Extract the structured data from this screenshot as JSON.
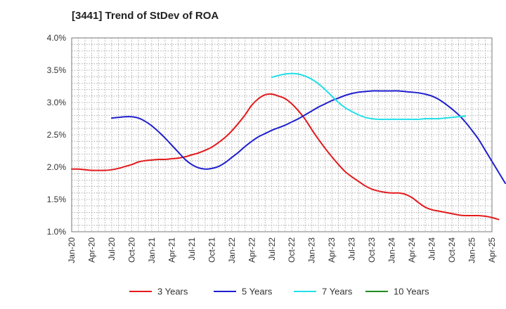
{
  "chart_data": {
    "type": "line",
    "title": "[3441]  Trend of StDev of ROA",
    "xlabel": "",
    "ylabel": "",
    "grid": true,
    "legend_position": "bottom",
    "ylim": [
      1.0,
      4.0
    ],
    "yticks": [
      "1.0%",
      "1.5%",
      "2.0%",
      "2.5%",
      "3.0%",
      "3.5%",
      "4.0%"
    ],
    "xticks": [
      "Jan-20",
      "Apr-20",
      "Jul-20",
      "Oct-20",
      "Jan-21",
      "Apr-21",
      "Jul-21",
      "Oct-21",
      "Jan-22",
      "Apr-22",
      "Jul-22",
      "Oct-22",
      "Jan-23",
      "Apr-23",
      "Jul-23",
      "Oct-23",
      "Jan-24",
      "Apr-24",
      "Jul-24",
      "Oct-24",
      "Jan-25",
      "Apr-25"
    ],
    "x_start": "Jan-20",
    "series": [
      {
        "name": "3 Years",
        "color": "#e31a1c",
        "start_month_index": 0,
        "values": [
          1.97,
          1.97,
          1.96,
          1.95,
          1.95,
          1.95,
          1.96,
          1.98,
          2.01,
          2.04,
          2.08,
          2.1,
          2.11,
          2.12,
          2.12,
          2.13,
          2.14,
          2.16,
          2.19,
          2.22,
          2.26,
          2.31,
          2.38,
          2.46,
          2.56,
          2.68,
          2.81,
          2.96,
          3.06,
          3.12,
          3.13,
          3.1,
          3.06,
          2.98,
          2.87,
          2.74,
          2.58,
          2.43,
          2.29,
          2.16,
          2.04,
          1.93,
          1.85,
          1.78,
          1.71,
          1.66,
          1.63,
          1.61,
          1.6,
          1.6,
          1.58,
          1.53,
          1.45,
          1.38,
          1.34,
          1.32,
          1.3,
          1.28,
          1.26,
          1.25,
          1.25,
          1.25,
          1.24,
          1.22,
          1.19
        ]
      },
      {
        "name": "5 Years",
        "color": "#1f1fcf",
        "start_month_index": 6,
        "values": [
          2.76,
          2.77,
          2.78,
          2.78,
          2.76,
          2.71,
          2.64,
          2.55,
          2.45,
          2.34,
          2.23,
          2.12,
          2.04,
          1.99,
          1.97,
          1.98,
          2.01,
          2.07,
          2.15,
          2.23,
          2.32,
          2.4,
          2.47,
          2.52,
          2.57,
          2.61,
          2.65,
          2.7,
          2.75,
          2.81,
          2.87,
          2.93,
          2.98,
          3.03,
          3.07,
          3.11,
          3.14,
          3.16,
          3.17,
          3.18,
          3.18,
          3.18,
          3.18,
          3.18,
          3.17,
          3.16,
          3.15,
          3.13,
          3.1,
          3.05,
          2.98,
          2.9,
          2.81,
          2.7,
          2.57,
          2.43,
          2.26,
          2.09,
          1.92,
          1.75
        ]
      },
      {
        "name": "7 Years",
        "color": "#22e0e8",
        "start_month_index": 30,
        "values": [
          3.39,
          3.42,
          3.44,
          3.45,
          3.44,
          3.41,
          3.36,
          3.29,
          3.2,
          3.1,
          3.0,
          2.92,
          2.86,
          2.81,
          2.77,
          2.75,
          2.74,
          2.74,
          2.74,
          2.74,
          2.74,
          2.74,
          2.74,
          2.75,
          2.75,
          2.75,
          2.76,
          2.77,
          2.78,
          2.79
        ]
      },
      {
        "name": "10 Years",
        "color": "#1e8c1e",
        "start_month_index": 0,
        "values": []
      }
    ]
  }
}
